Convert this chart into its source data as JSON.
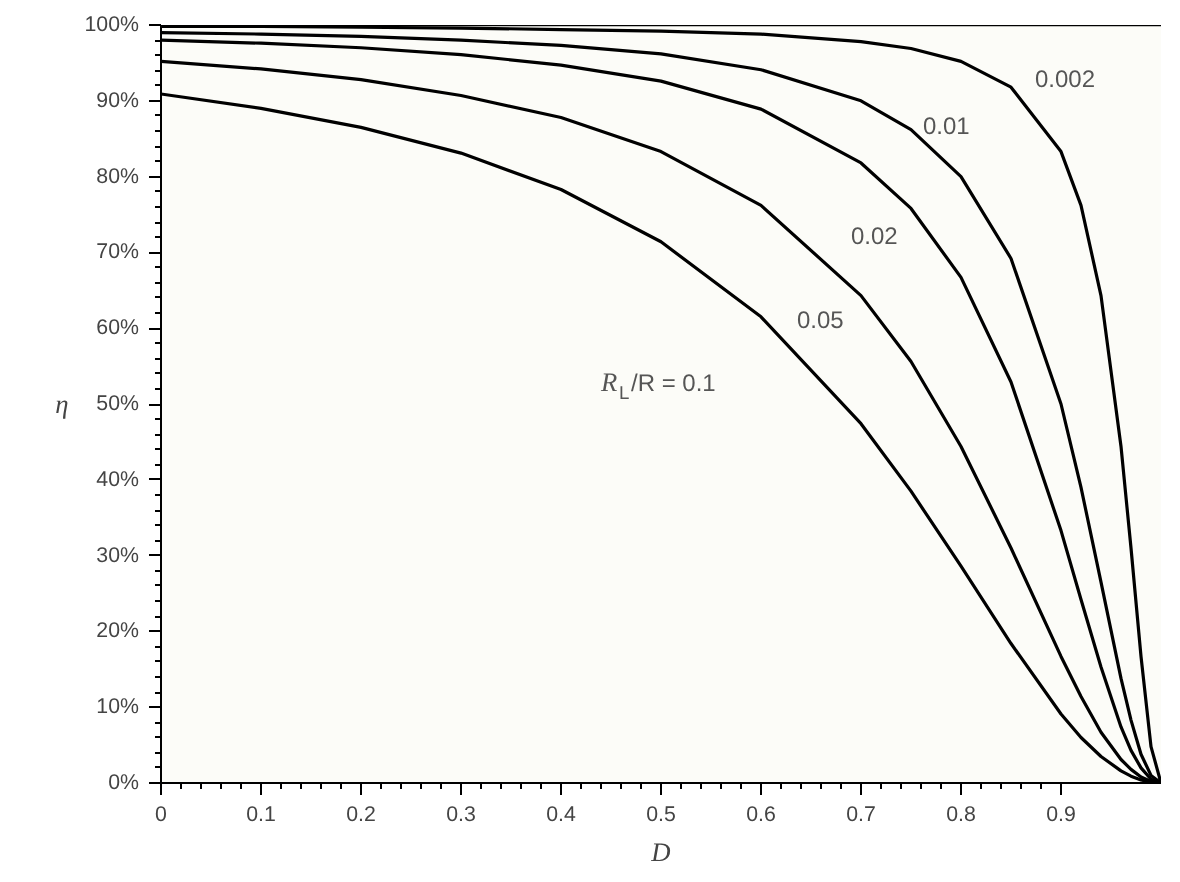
{
  "chart_data": {
    "type": "line",
    "xlabel": "D",
    "ylabel": "η",
    "x": [
      0,
      0.1,
      0.2,
      0.3,
      0.4,
      0.5,
      0.6,
      0.7,
      0.75,
      0.8,
      0.85,
      0.9,
      0.92,
      0.94,
      0.96,
      0.97,
      0.98,
      0.99,
      1.0
    ],
    "series": [
      {
        "name": "0.002",
        "color": "#000000",
        "values": [
          99.8,
          99.8,
          99.7,
          99.6,
          99.4,
          99.2,
          98.8,
          97.8,
          96.9,
          95.2,
          91.8,
          83.3,
          76.2,
          64.3,
          44.4,
          31.0,
          16.7,
          4.8,
          0
        ]
      },
      {
        "name": "0.01",
        "color": "#000000",
        "values": [
          99.0,
          98.8,
          98.5,
          98.0,
          97.3,
          96.2,
          94.1,
          90.0,
          86.2,
          80.0,
          69.2,
          50.0,
          39.0,
          26.5,
          13.8,
          8.3,
          3.8,
          1.0,
          0
        ]
      },
      {
        "name": "0.02",
        "color": "#000000",
        "values": [
          98.0,
          97.6,
          97.0,
          96.1,
          94.7,
          92.6,
          88.9,
          81.8,
          75.8,
          66.7,
          52.9,
          33.3,
          24.2,
          15.3,
          7.4,
          4.3,
          2.0,
          0.5,
          0
        ]
      },
      {
        "name": "0.05",
        "color": "#000000",
        "values": [
          95.2,
          94.2,
          92.8,
          90.7,
          87.8,
          83.3,
          76.2,
          64.3,
          55.6,
          44.4,
          31.0,
          16.7,
          11.4,
          6.7,
          3.1,
          1.8,
          0.8,
          0.2,
          0
        ]
      },
      {
        "name": "R$_{L}$/R = 0.1",
        "color": "#000000",
        "values": [
          90.9,
          89.0,
          86.5,
          83.1,
          78.3,
          71.4,
          61.5,
          47.4,
          38.5,
          28.6,
          18.4,
          9.1,
          6.0,
          3.5,
          1.6,
          0.9,
          0.4,
          0.1,
          0
        ]
      }
    ],
    "ref_lines": [
      {
        "axis": "y",
        "value": 100,
        "color": "#000000"
      }
    ],
    "xlim": [
      0,
      1
    ],
    "ylim": [
      0,
      100
    ],
    "xticks": [
      0,
      0.1,
      0.2,
      0.3,
      0.4,
      0.5,
      0.6,
      0.7,
      0.8,
      0.9
    ],
    "yticks": [
      {
        "value": 0,
        "label": "0%"
      },
      {
        "value": 10,
        "label": "10%"
      },
      {
        "value": 20,
        "label": "20%"
      },
      {
        "value": 30,
        "label": "30%"
      },
      {
        "value": 40,
        "label": "40%"
      },
      {
        "value": 50,
        "label": "50%"
      },
      {
        "value": 60,
        "label": "60%"
      },
      {
        "value": 70,
        "label": "70%"
      },
      {
        "value": 80,
        "label": "80%"
      },
      {
        "value": 90,
        "label": "90%"
      },
      {
        "value": 100,
        "label": "100%"
      }
    ],
    "grid": false,
    "legend": false,
    "marker": "none",
    "line_style": "solid"
  }
}
